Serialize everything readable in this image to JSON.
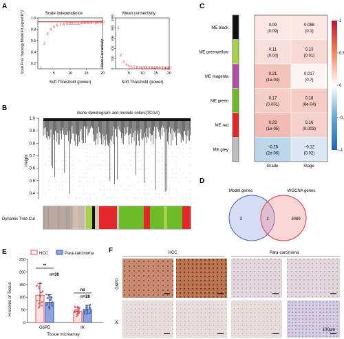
{
  "panels": {
    "A": {
      "letter": "A",
      "scale_title": "Scale independence",
      "scale_ylabel": "Scale Free Topology Model Fit,signed R^2",
      "scale_xlabel": "Soft Threshold (power)",
      "conn_title": "Mean connectivity",
      "conn_ylabel": "Mean Connectivity",
      "conn_xlabel": "Soft Threshold (power)",
      "x_ticks": [
        "5",
        "10",
        "15",
        "20"
      ],
      "scale_y_ticks": [
        "0.2",
        "0.4",
        "0.6",
        "0.8",
        "1.0"
      ],
      "conn_y_ticks": [
        "0",
        "200",
        "400",
        "600",
        "800",
        "1000"
      ],
      "line_color": "#e00000",
      "point_color": "#e02020"
    },
    "B": {
      "letter": "B",
      "title": "Gene dendrogram and module colors(TCGA)",
      "ylabel": "Height",
      "y_ticks": [
        "0.4",
        "0.5",
        "0.6",
        "0.7",
        "0.8",
        "0.9",
        "1.0"
      ],
      "bar_label": "Dynamic Tree Cut"
    },
    "C": {
      "letter": "C",
      "rows": [
        {
          "label": "ME black",
          "color": "#111111",
          "grade": "0.09",
          "grade_p": "(0.09)",
          "stage": "0.088",
          "stage_p": "(0.1)",
          "grade_fill": "#fbe6e3",
          "stage_fill": "#fbe6e3"
        },
        {
          "label": "ME greenyellow",
          "color": "#a6d24a",
          "grade": "0.11",
          "grade_p": "(0.04)",
          "stage": "0.13",
          "stage_p": "(0.01)",
          "grade_fill": "#f9dfdb",
          "stage_fill": "#f8d8d3"
        },
        {
          "label": "ME magenta",
          "color": "#b14ea6",
          "grade": "0.21",
          "grade_p": "(1e-04)",
          "stage": "0.017",
          "stage_p": "(0.7)",
          "grade_fill": "#f2c2bb",
          "stage_fill": "#fdf5f4"
        },
        {
          "label": "ME green",
          "color": "#6dbb28",
          "grade": "0.17",
          "grade_p": "(0.001)",
          "stage": "0.18",
          "stage_p": "(6e-04)",
          "grade_fill": "#f5cec8",
          "stage_fill": "#f4cbc5"
        },
        {
          "label": "ME red",
          "color": "#e0282a",
          "grade": "0.23",
          "grade_p": "(1e-05)",
          "stage": "0.16",
          "stage_p": "(0.003)",
          "grade_fill": "#f0bcb5",
          "stage_fill": "#f6d1cb"
        },
        {
          "label": "ME grey",
          "color": "#bdbdbd",
          "grade": "−0.25",
          "grade_p": "(2e-06)",
          "stage": "−0.12",
          "stage_p": "(0.02)",
          "grade_fill": "#bcd6ea",
          "stage_fill": "#dbe8f3"
        }
      ],
      "col_labels": [
        "Grade",
        "Stage"
      ],
      "scale_ticks": [
        "1",
        "0.5",
        "0",
        "-0.5",
        "-1"
      ],
      "scale_top_color": "#c0262a",
      "scale_mid_color": "#ffffff",
      "scale_bottom_color": "#2166ac"
    },
    "D": {
      "letter": "D",
      "left_label": "Model genes",
      "right_label": "WGCNA genes",
      "left_only": "3",
      "overlap": "2",
      "right_only": "3089",
      "left_color": "#5b6fc4",
      "right_color": "#e0504f"
    },
    "E": {
      "letter": "E",
      "legend": [
        "HCC",
        "Para-carcinoma"
      ],
      "ylabel": "H-scores of Tissue",
      "xlabel": "Tissue microarray",
      "categories": [
        "G6PD",
        "IK"
      ],
      "y_ticks": [
        "0",
        "50",
        "100",
        "150",
        "200",
        "250"
      ],
      "sig_g6pd": "**",
      "n_g6pd": "n=30",
      "sig_ik": "ns",
      "n_ik": "n=28",
      "hcc_color": "#e8484a",
      "para_color": "#3a57b5"
    },
    "F": {
      "letter": "F",
      "col_headers": [
        "HCC",
        "Para-carcinoma"
      ],
      "row_labels": [
        "G6PD",
        "IK"
      ],
      "scale_label": "100μm"
    }
  },
  "chart_data": [
    {
      "type": "scatter",
      "title": "Scale independence",
      "xlabel": "Soft Threshold (power)",
      "ylabel": "Scale Free Topology Model Fit,signed R^2",
      "x": [
        1,
        2,
        3,
        4,
        5,
        6,
        7,
        8,
        9,
        10,
        11,
        12,
        13,
        14,
        15,
        16,
        17,
        18,
        19,
        20
      ],
      "y": [
        0.12,
        0.55,
        0.72,
        0.8,
        0.84,
        0.87,
        0.88,
        0.89,
        0.9,
        0.9,
        0.91,
        0.91,
        0.91,
        0.92,
        0.92,
        0.92,
        0.92,
        0.92,
        0.93,
        0.93
      ],
      "xlim": [
        0,
        20
      ],
      "ylim": [
        0.1,
        1.0
      ],
      "hline": 0.93
    },
    {
      "type": "scatter",
      "title": "Mean connectivity",
      "xlabel": "Soft Threshold (power)",
      "ylabel": "Mean Connectivity",
      "x": [
        1,
        2,
        3,
        4,
        5,
        6,
        7,
        8,
        9,
        10,
        11,
        12,
        13,
        14,
        15,
        16,
        17,
        18,
        19,
        20
      ],
      "y": [
        800,
        260,
        120,
        65,
        40,
        28,
        20,
        15,
        12,
        10,
        8,
        7,
        6,
        5,
        5,
        4,
        4,
        3,
        3,
        3
      ],
      "xlim": [
        0,
        20
      ],
      "ylim": [
        0,
        1000
      ]
    },
    {
      "type": "heatmap",
      "rows": [
        "ME black",
        "ME greenyellow",
        "ME magenta",
        "ME green",
        "ME red",
        "ME grey"
      ],
      "columns": [
        "Grade",
        "Stage"
      ],
      "values": [
        [
          0.09,
          0.088
        ],
        [
          0.11,
          0.13
        ],
        [
          0.21,
          0.017
        ],
        [
          0.17,
          0.18
        ],
        [
          0.23,
          0.16
        ],
        [
          -0.25,
          -0.12
        ]
      ],
      "p_values": [
        [
          "0.09",
          "0.1"
        ],
        [
          "0.04",
          "0.01"
        ],
        [
          "1e-04",
          "0.7"
        ],
        [
          "0.001",
          "6e-04"
        ],
        [
          "1e-05",
          "0.003"
        ],
        [
          "2e-06",
          "0.02"
        ]
      ],
      "scale_range": [
        -1,
        1
      ]
    },
    {
      "type": "bar",
      "xlabel": "Tissue microarray",
      "ylabel": "H-scores of Tissue",
      "categories": [
        "G6PD",
        "IK"
      ],
      "series": [
        {
          "name": "HCC",
          "values": [
            108,
            42
          ],
          "sd": [
            45,
            18
          ]
        },
        {
          "name": "Para-carcinoma",
          "values": [
            80,
            52
          ],
          "sd": [
            30,
            16
          ]
        }
      ],
      "ylim": [
        0,
        250
      ]
    }
  ]
}
